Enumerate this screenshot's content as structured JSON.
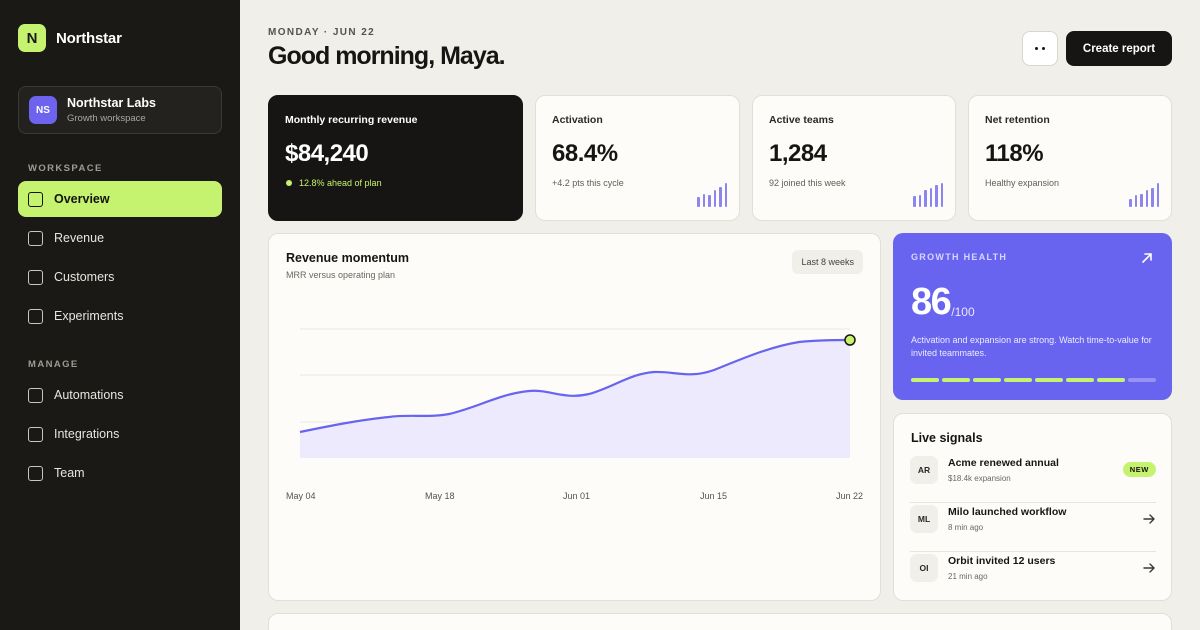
{
  "sidebar": {
    "brand": {
      "logo_letter": "N",
      "name": "Northstar"
    },
    "workspace": {
      "initials": "NS",
      "name": "Northstar Labs",
      "subtitle": "Growth workspace"
    },
    "section_workspace": "WORKSPACE",
    "section_manage": "MANAGE",
    "workspace_items": [
      {
        "label": "Overview",
        "active": true
      },
      {
        "label": "Revenue",
        "active": false
      },
      {
        "label": "Customers",
        "active": false
      },
      {
        "label": "Experiments",
        "active": false
      }
    ],
    "manage_items": [
      {
        "label": "Automations"
      },
      {
        "label": "Integrations"
      },
      {
        "label": "Team"
      }
    ]
  },
  "header": {
    "date": "MONDAY · JUN 22",
    "greeting": "Good morning, Maya.",
    "create_label": "Create report"
  },
  "kpis": [
    {
      "title": "Monthly recurring revenue",
      "value": "$84,240",
      "note": "12.8% ahead of plan",
      "spark": []
    },
    {
      "title": "Activation",
      "value": "68.4%",
      "note": "+4.2 pts this cycle",
      "spark": [
        0.4,
        0.55,
        0.5,
        0.7,
        0.85,
        1
      ]
    },
    {
      "title": "Active teams",
      "value": "1,284",
      "note": "92 joined this week",
      "spark": [
        0.45,
        0.5,
        0.7,
        0.8,
        0.9,
        1
      ]
    },
    {
      "title": "Net retention",
      "value": "118%",
      "note": "Healthy expansion",
      "spark": [
        0.35,
        0.5,
        0.55,
        0.7,
        0.8,
        1
      ]
    }
  ],
  "revenue": {
    "title": "Revenue momentum",
    "subtitle": "MRR versus operating plan",
    "range_label": "Last 8 weeks",
    "x_labels": [
      "May 04",
      "May 18",
      "Jun 01",
      "Jun 15",
      "Jun 22"
    ]
  },
  "growth": {
    "label": "GROWTH HEALTH",
    "score": "86",
    "max": "/100",
    "description": "Activation and expansion are strong. Watch time-to-value for invited teammates.",
    "segments_filled": 7,
    "segments_total": 8
  },
  "signals": {
    "title": "Live signals",
    "items": [
      {
        "initials": "AR",
        "title": "Acme renewed annual",
        "sub": "$18.4k expansion",
        "badge": "NEW"
      },
      {
        "initials": "ML",
        "title": "Milo launched workflow",
        "sub": "8 min ago",
        "badge": ""
      },
      {
        "initials": "OI",
        "title": "Orbit invited 12 users",
        "sub": "21 min ago",
        "badge": ""
      }
    ]
  },
  "colors": {
    "accent": "#c6f36f",
    "purple": "#6964ef",
    "dark": "#161513"
  }
}
